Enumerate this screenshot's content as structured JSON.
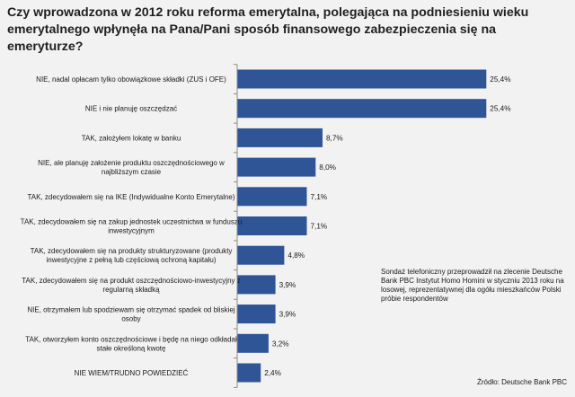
{
  "title": "Czy wprowadzona w 2012 roku reforma emerytalna, polegająca na podniesieniu wieku emerytalnego wpłynęła na Pana/Pani sposób finansowego zabezpieczenia się na emeryturze?",
  "note": "Sondaż telefoniczny przeprowadził na zlecenie Deutsche Bank PBC Instytut Homo Homini w styczniu 2013 roku na losowej, reprezentatywnej dla ogółu mieszkańców Polski próbie respondentów",
  "source": "Źródło: Deutsche Bank PBC",
  "chart_data": {
    "type": "bar",
    "orientation": "horizontal",
    "bar_color": "#2f5597",
    "categories": [
      [
        "NIE, nadal opłacam tylko obowiązkowe składki (ZUS i OFE)"
      ],
      [
        "NIE i nie planuję oszczędzać"
      ],
      [
        "TAK, założyłem lokatę w banku"
      ],
      [
        "NIE, ale planuję założenie produktu oszczędnościowego w",
        "najbliższym czasie"
      ],
      [
        "TAK, zdecydowałem się na IKE (Indywidualne Konto Emerytalne)"
      ],
      [
        "TAK, zdecydowałem się na zakup jednostek uczestnictwa w funduszu",
        "inwestycyjnym"
      ],
      [
        "TAK, zdecydowałem się na produkty strukturyzowane (produkty",
        "inwestycyjne z pełną lub częściową ochroną kapitału)"
      ],
      [
        "TAK, zdecydowałem się na produkt oszczędnościowo-inwestycyjny z",
        "regularną składką"
      ],
      [
        "NIE, otrzymałem lub spodziewam się otrzymać spadek od bliskiej",
        "osoby"
      ],
      [
        "TAK, otworzyłem konto oszczędnościowe i będę na niego odkładał",
        "stałe określoną kwotę"
      ],
      [
        "NIE WIEM/TRUDNO POWIEDZIEĆ"
      ]
    ],
    "values": [
      25.4,
      25.4,
      8.7,
      8.0,
      7.1,
      7.1,
      4.8,
      3.9,
      3.9,
      3.2,
      2.4
    ],
    "data_labels": [
      "25,4%",
      "25,4%",
      "8,7%",
      "8,0%",
      "7,1%",
      "7,1%",
      "4,8%",
      "3,9%",
      "3,9%",
      "3,2%",
      "2,4%"
    ],
    "xlim": [
      0,
      28.4
    ],
    "unit": "%"
  }
}
